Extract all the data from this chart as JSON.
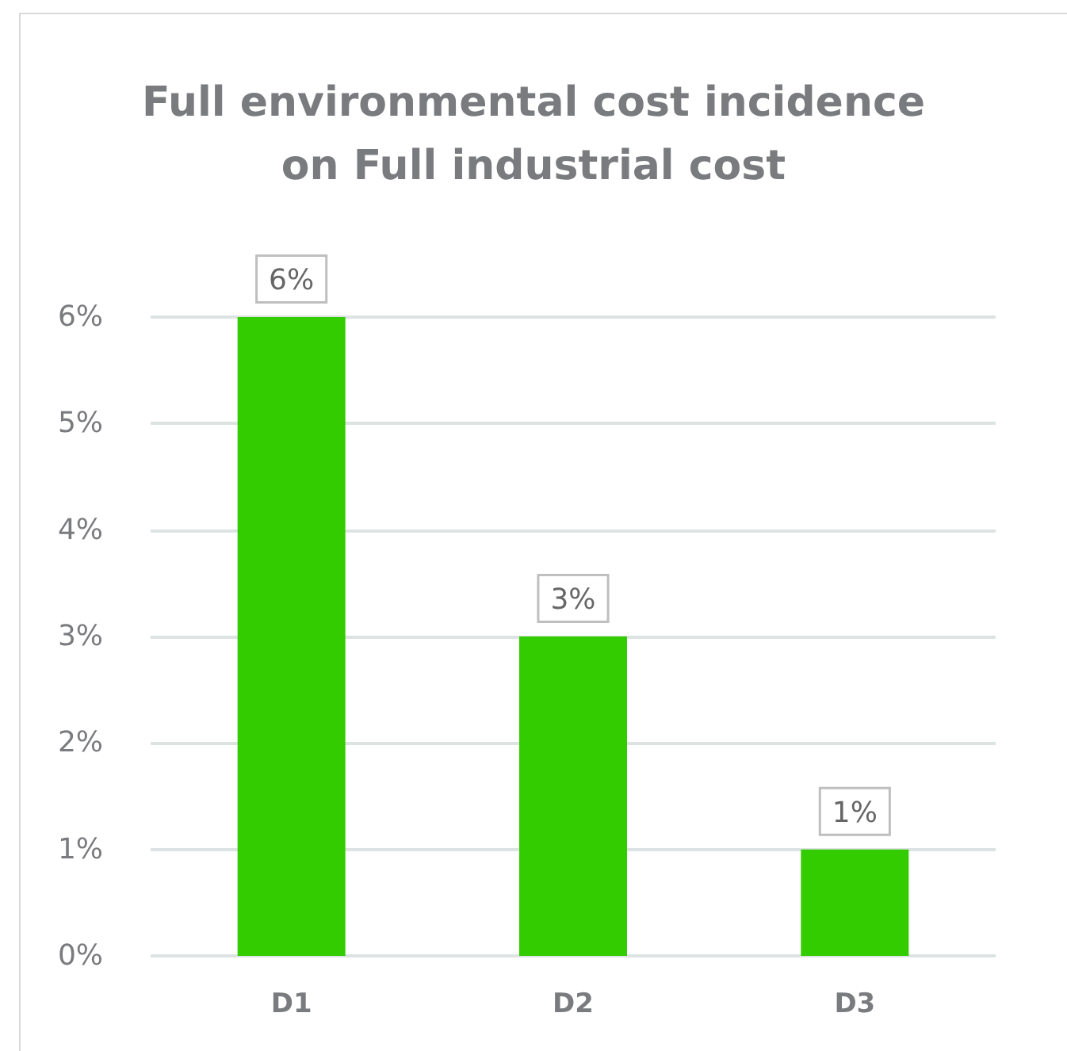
{
  "chart_data": {
    "type": "bar",
    "title": "Full environmental cost incidence\non Full industrial cost",
    "categories": [
      "D1",
      "D2",
      "D3"
    ],
    "values": [
      6,
      3,
      1
    ],
    "color": "#33cc00",
    "value_labels": [
      "6%",
      "3%",
      "1%"
    ],
    "ylim": [
      0,
      6
    ],
    "yticks": [
      {
        "value": 0,
        "label": "0%"
      },
      {
        "value": 1,
        "label": "1%"
      },
      {
        "value": 2,
        "label": "2%"
      },
      {
        "value": 3,
        "label": "3%"
      },
      {
        "value": 4,
        "label": "4%"
      },
      {
        "value": 5,
        "label": "5%"
      },
      {
        "value": 6,
        "label": "6%"
      }
    ],
    "grid": "y"
  }
}
